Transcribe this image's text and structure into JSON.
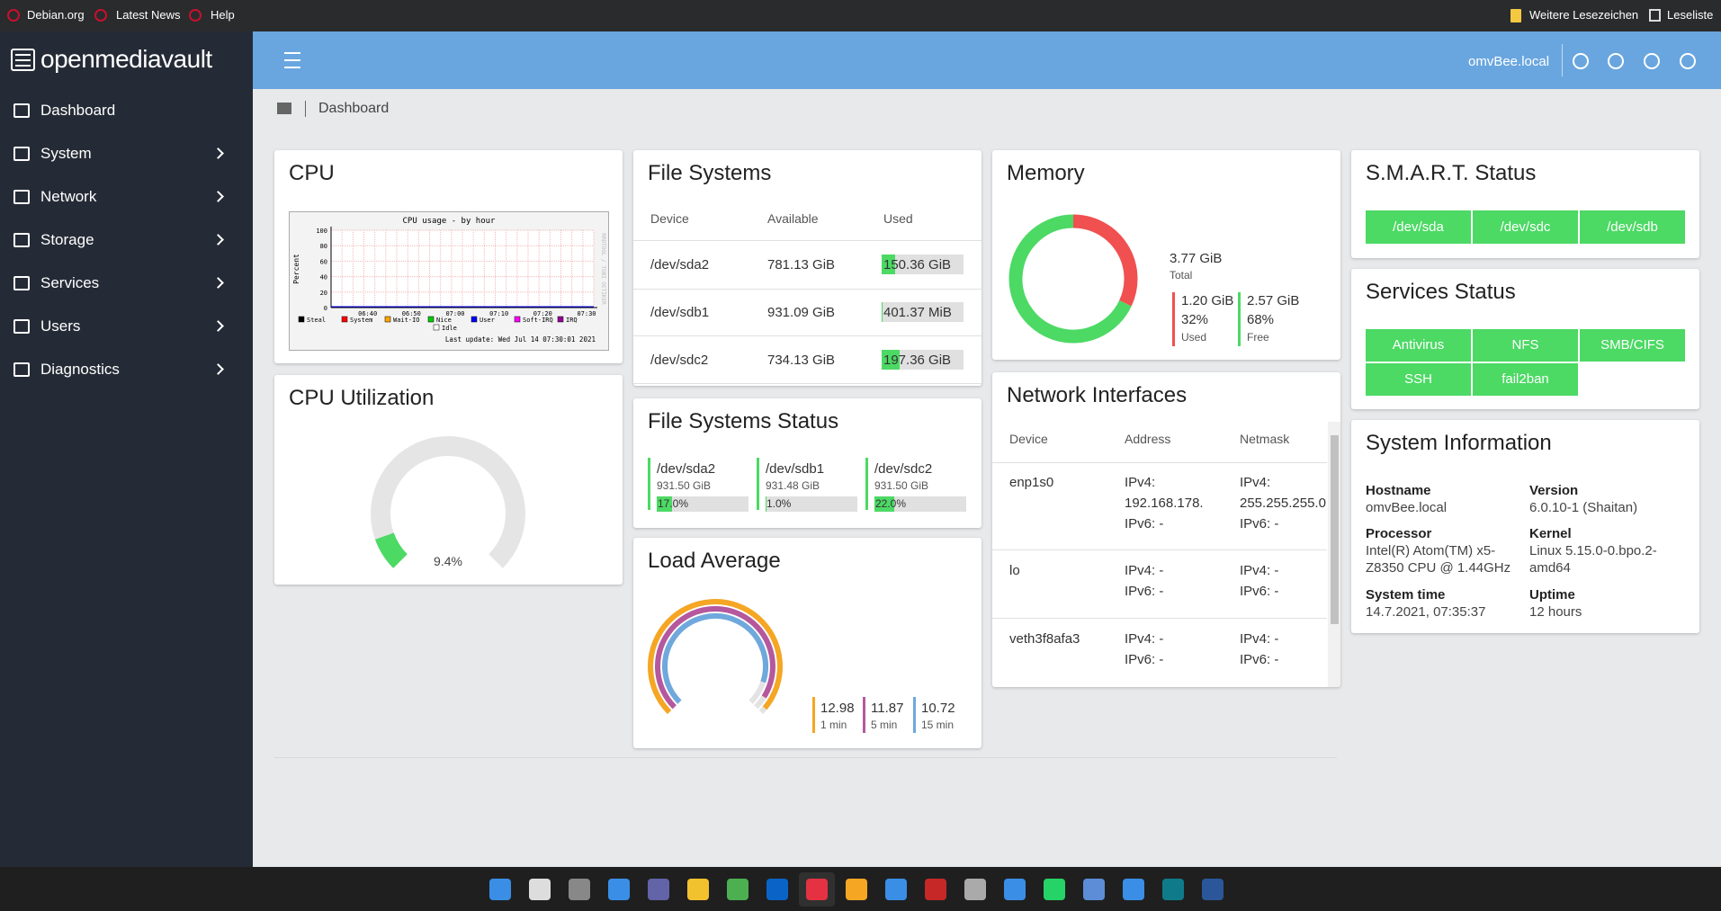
{
  "browser": {
    "bookmarks": [
      "Debian.org",
      "Latest News",
      "Help"
    ],
    "right": [
      "Weitere Lesezeichen",
      "Leseliste"
    ]
  },
  "sidebar": {
    "brand": "openmediavault",
    "nav": [
      "Dashboard",
      "System",
      "Network",
      "Storage",
      "Services",
      "Users",
      "Diagnostics"
    ]
  },
  "header": {
    "hostname": "omvBee.local"
  },
  "breadcrumb": "Dashboard",
  "cpu": {
    "title": "CPU",
    "graph": {
      "title": "CPU usage - by hour",
      "ylabel": "Percent",
      "yticks": [
        0,
        20,
        40,
        60,
        80,
        100
      ],
      "xticks": [
        "06:40",
        "06:50",
        "07:00",
        "07:10",
        "07:20",
        "07:30"
      ],
      "legend": [
        {
          "name": "Steal",
          "color": "#000000"
        },
        {
          "name": "System",
          "color": "#ff0000"
        },
        {
          "name": "Wait-IO",
          "color": "#ffa500"
        },
        {
          "name": "Nice",
          "color": "#00cc00"
        },
        {
          "name": "User",
          "color": "#0000ff"
        },
        {
          "name": "Soft-IRQ",
          "color": "#ff00ff"
        },
        {
          "name": "IRQ",
          "color": "#990099"
        },
        {
          "name": "Idle",
          "color": "#ffffff"
        }
      ],
      "last_update": "Last update: Wed Jul 14 07:30:01 2021",
      "side_text": "RRDTOOL / TOBI OETIKER"
    }
  },
  "cpu_utilization": {
    "title": "CPU Utilization",
    "value": {
      "value": 9.4,
      "label": "9.4%"
    }
  },
  "file_systems": {
    "title": "File Systems",
    "columns": [
      "Device",
      "Available",
      "Used"
    ],
    "rows": [
      [
        "/dev/sda2",
        "781.13 GiB",
        "150.36 GiB"
      ],
      [
        "/dev/sdb1",
        "931.09 GiB",
        "401.37 MiB"
      ],
      [
        "/dev/sdc2",
        "734.13 GiB",
        "197.36 GiB"
      ]
    ]
  },
  "file_systems_status": {
    "title": "File Systems Status",
    "items": [
      {
        "device": "/dev/sda2",
        "size": "931.50 GiB",
        "percent": {
          "value": 17.0,
          "label": "17.0%"
        }
      },
      {
        "device": "/dev/sdb1",
        "size": "931.48 GiB",
        "percent": {
          "value": 1.0,
          "label": "1.0%"
        }
      },
      {
        "device": "/dev/sdc2",
        "size": "931.50 GiB",
        "percent": {
          "value": 22.0,
          "label": "22.0%"
        }
      }
    ]
  },
  "load_average": {
    "title": "Load Average",
    "items": [
      {
        "value": 12.98,
        "label": "1 min"
      },
      {
        "value": 11.87,
        "label": "5 min"
      },
      {
        "value": 10.72,
        "label": "15 min"
      }
    ]
  },
  "memory": {
    "title": "Memory",
    "total": {
      "value": "3.77 GiB",
      "label": "Total"
    },
    "used": {
      "value": "1.20 GiB",
      "percent": {
        "value": 32,
        "label": "32%"
      },
      "label": "Used"
    },
    "free": {
      "value": "2.57 GiB",
      "percent": {
        "value": 68,
        "label": "68%"
      },
      "label": "Free"
    }
  },
  "network": {
    "title": "Network Interfaces",
    "columns": [
      "Device",
      "Address",
      "Netmask"
    ],
    "rows": [
      {
        "device": "enp1s0",
        "address": [
          "IPv4:",
          "192.168.178.",
          "IPv6: -"
        ],
        "netmask": [
          "IPv4:",
          "255.255.255.0",
          "IPv6: -"
        ]
      },
      {
        "device": "lo",
        "address": [
          "IPv4: -",
          "IPv6: -"
        ],
        "netmask": [
          "IPv4: -",
          "IPv6: -"
        ]
      },
      {
        "device": "veth3f8afa3",
        "address": [
          "IPv4: -",
          "IPv6: -"
        ],
        "netmask": [
          "IPv4: -",
          "IPv6: -"
        ]
      }
    ]
  },
  "smart": {
    "title": "S.M.A.R.T. Status",
    "items": [
      "/dev/sda",
      "/dev/sdc",
      "/dev/sdb"
    ]
  },
  "services": {
    "title": "Services Status",
    "items": [
      "Antivirus",
      "NFS",
      "SMB/CIFS",
      "SSH",
      "fail2ban"
    ]
  },
  "system_info": {
    "title": "System Information",
    "fields": [
      {
        "label": "Hostname",
        "value": [
          "omvBee.local"
        ]
      },
      {
        "label": "Version",
        "value": [
          "6.0.10-1 (Shaitan)"
        ]
      },
      {
        "label": "Processor",
        "value": [
          "Intel(R) Atom(TM) x5-",
          "Z8350 CPU @ 1.44GHz"
        ]
      },
      {
        "label": "Kernel",
        "value": [
          "Linux 5.15.0-0.bpo.2-",
          "amd64"
        ]
      },
      {
        "label": "System time",
        "value": [
          "14.7.2021, 07:35:37"
        ]
      },
      {
        "label": "Uptime",
        "value": [
          "12 hours"
        ]
      }
    ]
  }
}
